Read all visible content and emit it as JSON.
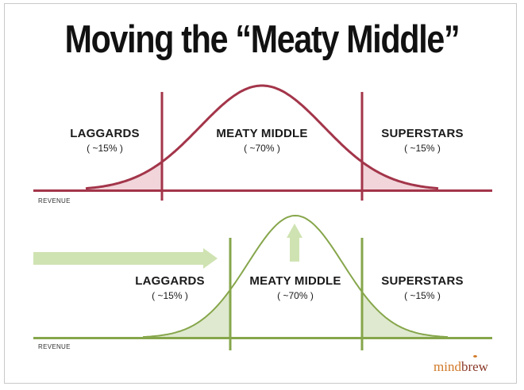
{
  "title": "Moving the “Meaty Middle”",
  "colors": {
    "top": "#a3354a",
    "top_fill": "#f1d5da",
    "bottom": "#86a64b",
    "bottom_fill": "#dfe9cf",
    "arrow": "#cfe3b2"
  },
  "top_panel": {
    "laggards": {
      "label": "LAGGARDS",
      "percent": "( ~15% )"
    },
    "middle": {
      "label": "MEATY MIDDLE",
      "percent": "( ~70% )"
    },
    "superstars": {
      "label": "SUPERSTARS",
      "percent": "( ~15% )"
    },
    "axis_label": "REVENUE"
  },
  "bottom_panel": {
    "laggards": {
      "label": "LAGGARDS",
      "percent": "( ~15% )"
    },
    "middle": {
      "label": "MEATY MIDDLE",
      "percent": "( ~70% )"
    },
    "superstars": {
      "label": "SUPERSTARS",
      "percent": "( ~15% )"
    },
    "axis_label": "REVENUE"
  },
  "logo": {
    "part1": "mind",
    "part2": "brew"
  }
}
